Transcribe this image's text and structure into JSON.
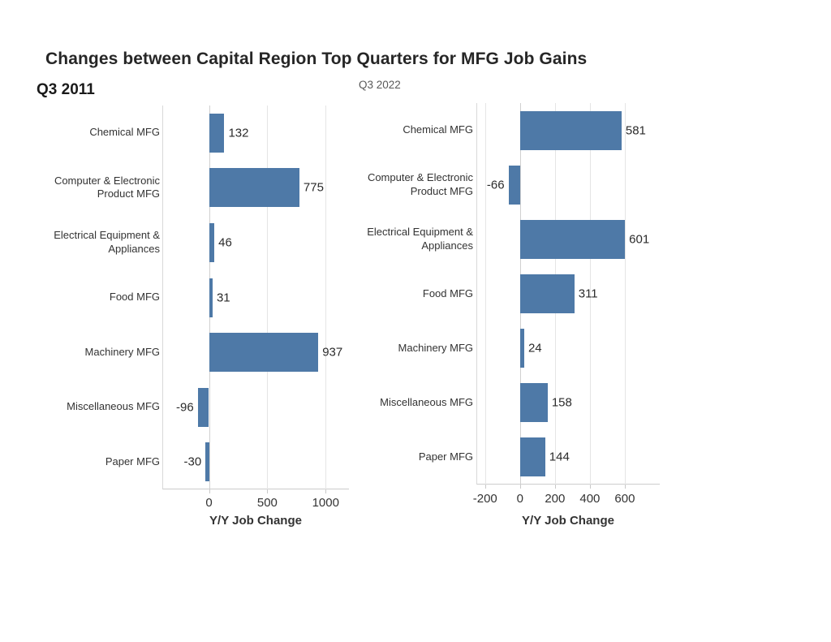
{
  "page_title": "Changes between Capital Region Top Quarters for MFG Job Gains",
  "colors": {
    "bar": "#4e79a7",
    "gridline": "#e5e5e5",
    "zero_line": "#cfcfcf",
    "text": "#333333",
    "header_dark": "#1a1a1a",
    "header_gray": "#595959"
  },
  "chart_data": [
    {
      "type": "bar",
      "orientation": "horizontal",
      "title": "Q3 2011",
      "categories": [
        "Chemical MFG",
        "Computer & Electronic\nProduct MFG",
        "Electrical Equipment &\nAppliances",
        "Food MFG",
        "Machinery MFG",
        "Miscellaneous MFG",
        "Paper MFG"
      ],
      "values": [
        132,
        775,
        46,
        31,
        937,
        -96,
        -30
      ],
      "value_labels": [
        "132",
        "775",
        "46",
        "31",
        "937",
        "-96",
        "-30"
      ],
      "xlabel": "Y/Y Job Change",
      "xlim": [
        -400,
        1200
      ],
      "xticks": [
        0,
        500,
        1000
      ],
      "xtick_labels": [
        "0",
        "500",
        "1000"
      ],
      "grid": true,
      "legend": "none",
      "bar_color": "#4e79a7"
    },
    {
      "type": "bar",
      "orientation": "horizontal",
      "title": "Q3 2022",
      "categories": [
        "Chemical MFG",
        "Computer & Electronic\nProduct MFG",
        "Electrical Equipment &\nAppliances",
        "Food MFG",
        "Machinery MFG",
        "Miscellaneous MFG",
        "Paper MFG"
      ],
      "values": [
        581,
        -66,
        601,
        311,
        24,
        158,
        144
      ],
      "value_labels": [
        "581",
        "-66",
        "601",
        "311",
        "24",
        "158",
        "144"
      ],
      "xlabel": "Y/Y Job Change",
      "xlim": [
        -250,
        800
      ],
      "xticks": [
        -200,
        0,
        200,
        400,
        600
      ],
      "xtick_labels": [
        "-200",
        "0",
        "200",
        "400",
        "600"
      ],
      "grid": true,
      "legend": "none",
      "bar_color": "#4e79a7"
    }
  ]
}
